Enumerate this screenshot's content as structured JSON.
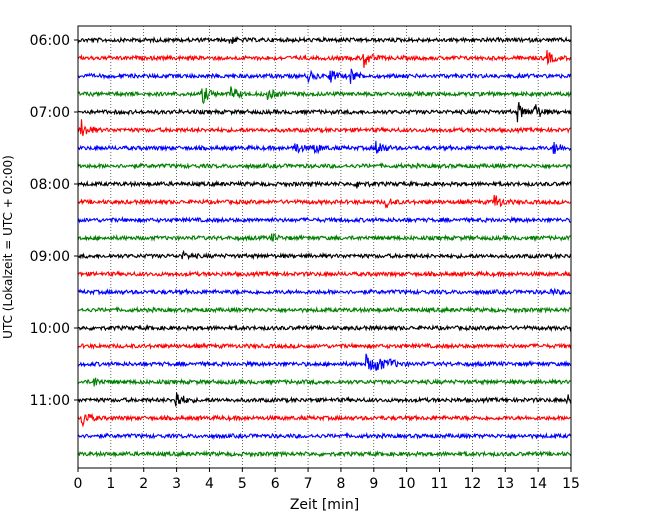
{
  "chart_data": {
    "type": "line",
    "title": "",
    "xlabel": "Zeit  [min]",
    "ylabel": "UTC (Lokalzeit = UTC + 02:00)",
    "xlim": [
      0,
      15
    ],
    "x_ticks": [
      0,
      1,
      2,
      3,
      4,
      5,
      6,
      7,
      8,
      9,
      10,
      11,
      12,
      13,
      14,
      15
    ],
    "x_grid": true,
    "y_tick_labels": [
      {
        "row": 0,
        "label": "06:00"
      },
      {
        "row": 4,
        "label": "07:00"
      },
      {
        "row": 8,
        "label": "08:00"
      },
      {
        "row": 12,
        "label": "09:00"
      },
      {
        "row": 16,
        "label": "10:00"
      },
      {
        "row": 20,
        "label": "11:00"
      }
    ],
    "color_cycle": [
      "#000000",
      "#ff0000",
      "#0000ff",
      "#008000"
    ],
    "traces": [
      {
        "start": "06:00",
        "events": [
          {
            "t": 4.6,
            "a": 0.35
          }
        ]
      },
      {
        "start": "06:15",
        "events": [
          {
            "t": 8.7,
            "a": 0.9
          },
          {
            "t": 14.3,
            "a": 0.6
          }
        ]
      },
      {
        "start": "06:30",
        "events": [
          {
            "t": 7.0,
            "a": 0.5
          },
          {
            "t": 7.7,
            "a": 0.6
          },
          {
            "t": 8.3,
            "a": 0.7
          }
        ]
      },
      {
        "start": "06:45",
        "events": [
          {
            "t": 3.8,
            "a": 0.9
          },
          {
            "t": 4.7,
            "a": 0.6
          },
          {
            "t": 5.8,
            "a": 0.5
          }
        ]
      },
      {
        "start": "07:00",
        "events": [
          {
            "t": 13.4,
            "a": 0.9
          },
          {
            "t": 13.9,
            "a": 0.8
          }
        ]
      },
      {
        "start": "07:15",
        "events": [
          {
            "t": 0.1,
            "a": 1.0
          }
        ]
      },
      {
        "start": "07:30",
        "events": [
          {
            "t": 6.6,
            "a": 0.6
          },
          {
            "t": 7.2,
            "a": 0.5
          },
          {
            "t": 9.1,
            "a": 0.8
          },
          {
            "t": 14.5,
            "a": 0.6
          }
        ]
      },
      {
        "start": "07:45",
        "events": []
      },
      {
        "start": "08:00",
        "events": [
          {
            "t": 8.5,
            "a": 0.4
          }
        ]
      },
      {
        "start": "08:15",
        "events": [
          {
            "t": 9.4,
            "a": 0.4
          },
          {
            "t": 12.7,
            "a": 0.7
          }
        ]
      },
      {
        "start": "08:30",
        "events": []
      },
      {
        "start": "08:45",
        "events": [
          {
            "t": 5.9,
            "a": 0.3
          }
        ]
      },
      {
        "start": "09:00",
        "events": [
          {
            "t": 3.2,
            "a": 0.3
          }
        ]
      },
      {
        "start": "09:15",
        "events": []
      },
      {
        "start": "09:30",
        "events": [
          {
            "t": 14.4,
            "a": 0.2
          }
        ]
      },
      {
        "start": "09:45",
        "events": []
      },
      {
        "start": "10:00",
        "events": []
      },
      {
        "start": "10:15",
        "events": []
      },
      {
        "start": "10:30",
        "events": [
          {
            "t": 8.8,
            "a": 0.9
          },
          {
            "t": 9.1,
            "a": 0.8
          },
          {
            "t": 9.5,
            "a": 0.4
          }
        ]
      },
      {
        "start": "10:45",
        "events": [
          {
            "t": 0.5,
            "a": 0.4
          }
        ]
      },
      {
        "start": "11:00",
        "events": [
          {
            "t": 3.0,
            "a": 0.9
          },
          {
            "t": 14.9,
            "a": 0.4
          }
        ]
      },
      {
        "start": "11:15",
        "events": [
          {
            "t": 0.15,
            "a": 0.8
          }
        ]
      },
      {
        "start": "11:30",
        "events": []
      },
      {
        "start": "11:45",
        "events": []
      }
    ]
  }
}
